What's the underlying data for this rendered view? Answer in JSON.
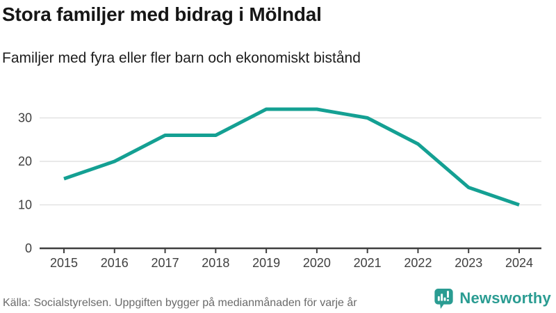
{
  "chart_data": {
    "type": "line",
    "title": "Stora familjer med bidrag i Mölndal",
    "subtitle": "Familjer med fyra eller fler barn och ekonomiskt bistånd",
    "x": [
      2015,
      2016,
      2017,
      2018,
      2019,
      2020,
      2021,
      2022,
      2023,
      2024
    ],
    "series": [
      {
        "name": "Familjer med fyra eller fler barn och ekonomiskt bistånd",
        "values": [
          16,
          20,
          26,
          26,
          32,
          32,
          30,
          24,
          14,
          10
        ]
      }
    ],
    "xlabel": "",
    "ylabel": "",
    "ylim": [
      0,
      35
    ],
    "yticks": [
      0,
      10,
      20,
      30
    ],
    "grid": "horizontal-only",
    "legend": "none",
    "line_color": "#14a093",
    "axis_color": "#3f3f3f",
    "gridline_color": "#e2e2e2"
  },
  "footer": {
    "source": "Källa: Socialstyrelsen. Uppgiften bygger på medianmånaden för varje år",
    "brand": "Newsworthy",
    "brand_color": "#2a9c92"
  }
}
